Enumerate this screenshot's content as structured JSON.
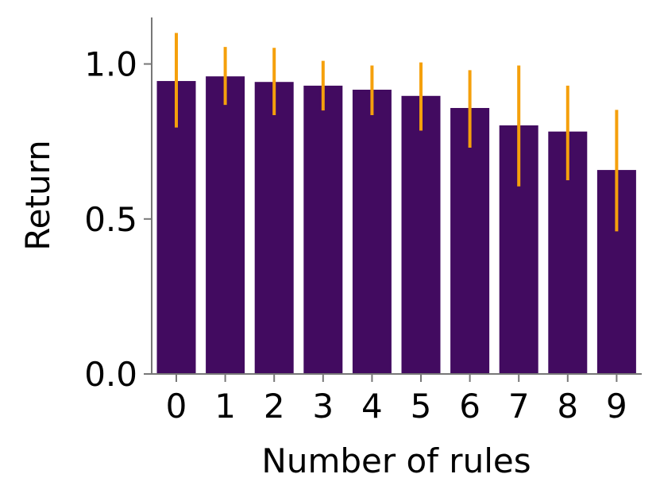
{
  "chart_data": {
    "type": "bar",
    "categories": [
      "0",
      "1",
      "2",
      "3",
      "4",
      "5",
      "6",
      "7",
      "8",
      "9"
    ],
    "values": [
      0.945,
      0.96,
      0.942,
      0.93,
      0.917,
      0.897,
      0.858,
      0.802,
      0.782,
      0.658
    ],
    "error_low": [
      0.795,
      0.868,
      0.835,
      0.85,
      0.835,
      0.785,
      0.73,
      0.605,
      0.625,
      0.46
    ],
    "error_high": [
      1.1,
      1.055,
      1.052,
      1.01,
      0.995,
      1.005,
      0.98,
      0.995,
      0.93,
      0.852
    ],
    "xlabel": "Number of rules",
    "ylabel": "Return",
    "ylim": [
      0.0,
      1.15
    ],
    "yticks": [
      "0.0",
      "0.5",
      "1.0"
    ],
    "ytick_values": [
      0.0,
      0.5,
      1.0
    ],
    "grid": false,
    "colors": {
      "bar": "#420b60",
      "error": "#f5a00c",
      "axis": "#777777"
    }
  }
}
